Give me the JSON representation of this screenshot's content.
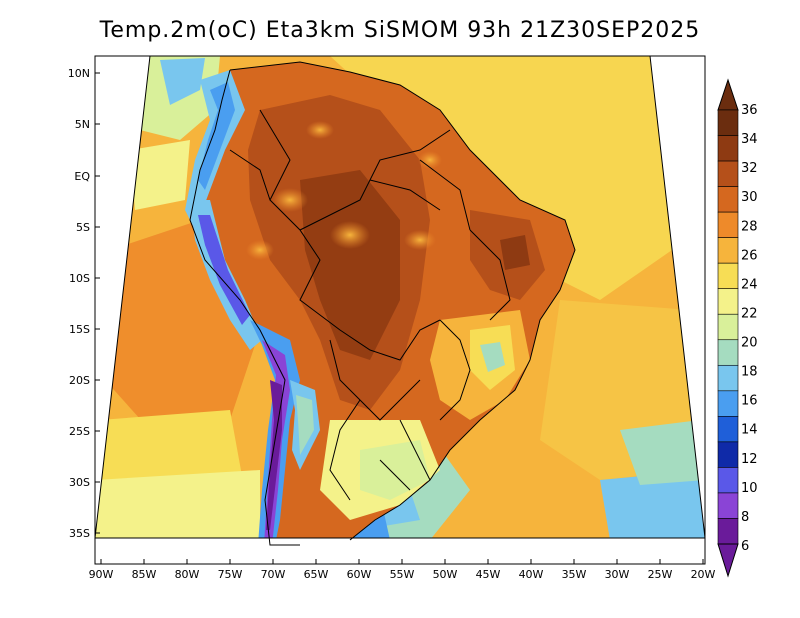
{
  "title": "Temp.2m(oC) Eta3km SiSMOM 93h 21Z30SEP2025",
  "lat_labels": [
    "10N",
    "5N",
    "EQ",
    "5S",
    "10S",
    "15S",
    "20S",
    "25S",
    "30S",
    "35S"
  ],
  "lon_labels": [
    "90W",
    "85W",
    "80W",
    "75W",
    "70W",
    "65W",
    "60W",
    "55W",
    "50W",
    "45W",
    "40W",
    "35W",
    "30W",
    "25W",
    "20W"
  ],
  "colorbar": {
    "labels": [
      "36",
      "34",
      "32",
      "30",
      "28",
      "26",
      "24",
      "22",
      "20",
      "18",
      "16",
      "14",
      "12",
      "10",
      "8",
      "6"
    ],
    "colors": [
      "#6b2d0f",
      "#8e3a12",
      "#b5501a",
      "#d5681f",
      "#ee8a2a",
      "#f6b43c",
      "#f7dd55",
      "#f4f28a",
      "#d9f09a",
      "#a5dcc0",
      "#79c6ee",
      "#4a9ef0",
      "#1f5fd9",
      "#0f2aa8",
      "#5a58e8",
      "#8a44d6",
      "#6a1b9a"
    ],
    "top_color": "#6b2d0f",
    "bottom_color": "#6a1b9a"
  }
}
